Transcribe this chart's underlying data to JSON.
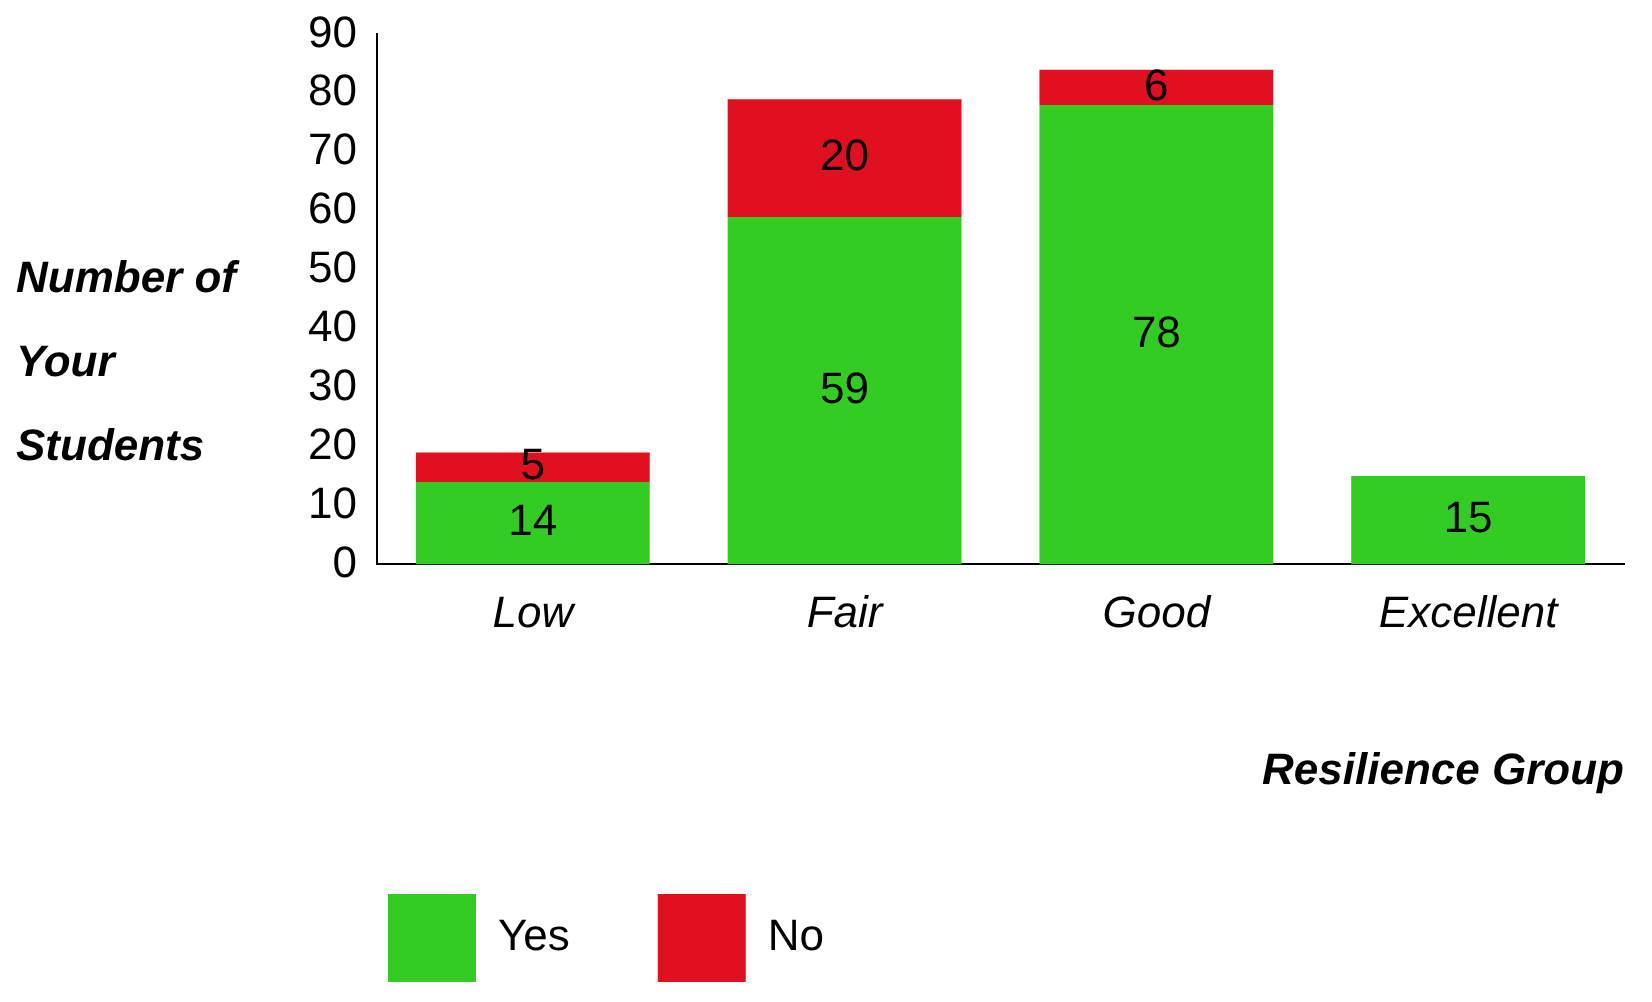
{
  "chart_data": {
    "type": "bar",
    "stacked": true,
    "xlabel": "Resilience Group",
    "ylabel": "Number of Your Students",
    "categories": [
      "Low",
      "Fair",
      "Good",
      "Excellent"
    ],
    "series": [
      {
        "name": "Yes",
        "color": "#33cc22",
        "values": [
          14,
          59,
          78,
          15
        ]
      },
      {
        "name": "No",
        "color": "#e01020",
        "values": [
          5,
          20,
          6,
          null
        ]
      }
    ],
    "ylim": [
      0,
      90
    ],
    "yticks": [
      0,
      10,
      20,
      30,
      40,
      50,
      60,
      70,
      80,
      90
    ],
    "grid": false,
    "legend": "bottom",
    "data_labels": true
  }
}
